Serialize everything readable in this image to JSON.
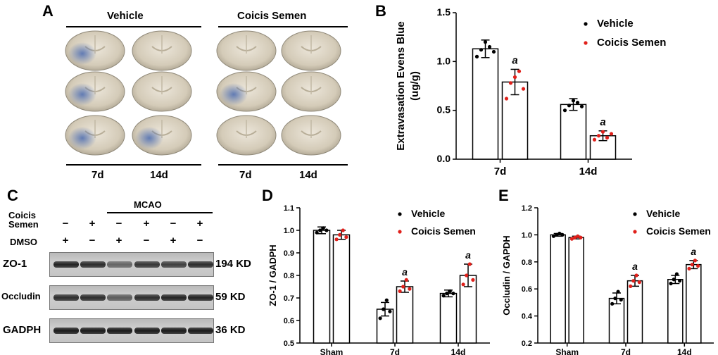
{
  "panel_a": {
    "letter": "A",
    "group_left": "Vehicle",
    "group_right": "Coicis Semen",
    "col_labels": [
      "7d",
      "14d",
      "7d",
      "14d"
    ],
    "colors": {
      "tissue": "#d8d2c4",
      "stain": "#5c6f9c",
      "background": "#ffffff"
    }
  },
  "panel_c": {
    "letter": "C",
    "mcao_label": "MCAO",
    "row_coicis": "Coicis\nSemen",
    "row_coicis_line1": "Coicis",
    "row_coicis_line2": "Semen",
    "row_dmso": "DMSO",
    "coicis_signs": [
      "−",
      "+",
      "−",
      "+",
      "−",
      "+"
    ],
    "dmso_signs": [
      "+",
      "−",
      "+",
      "−",
      "+",
      "−"
    ],
    "blots": [
      {
        "name": "ZO-1",
        "size": "194 KD",
        "intensities": [
          0.9,
          0.85,
          0.55,
          0.8,
          0.75,
          0.85
        ]
      },
      {
        "name": "Occludin",
        "size": "59 KD",
        "intensities": [
          0.85,
          0.85,
          0.6,
          0.85,
          0.9,
          0.9
        ]
      },
      {
        "name": "GADPH",
        "size": "36 KD",
        "intensities": [
          0.95,
          0.95,
          0.95,
          0.95,
          0.95,
          0.95
        ]
      }
    ]
  },
  "chart_data": [
    {
      "panel": "B",
      "type": "bar",
      "ylabel": "Extravasation Evens Blue (ug/g)",
      "ylabel_line1": "Extravasation Evens Blue",
      "ylabel_line2": "(ug/g)",
      "ylim": [
        0,
        1.5
      ],
      "yticks": [
        "0.0",
        "0.5",
        "1.0",
        "1.5"
      ],
      "categories": [
        "7d",
        "14d"
      ],
      "series": [
        {
          "name": "Vehicle",
          "color": "#000000",
          "values": [
            1.13,
            0.56
          ],
          "err": [
            0.09,
            0.06
          ],
          "points": [
            [
              1.05,
              1.12,
              1.2,
              1.15,
              1.1
            ],
            [
              0.5,
              0.55,
              0.6,
              0.58,
              0.54
            ]
          ]
        },
        {
          "name": "Coicis Semen",
          "color": "#e0201b",
          "values": [
            0.79,
            0.24
          ],
          "err": [
            0.13,
            0.05
          ],
          "points": [
            [
              0.62,
              0.78,
              0.84,
              0.9,
              0.72
            ],
            [
              0.2,
              0.24,
              0.28,
              0.22,
              0.26
            ]
          ]
        }
      ],
      "annotations": [
        "a",
        "a"
      ]
    },
    {
      "panel": "D",
      "type": "bar",
      "ylabel": "ZO-1 / GADPH",
      "ylim": [
        0.5,
        1.1
      ],
      "yticks": [
        "0.5",
        "0.6",
        "0.7",
        "0.8",
        "0.9",
        "1.0",
        "1.1"
      ],
      "categories": [
        "Sham",
        "7d",
        "14d"
      ],
      "series": [
        {
          "name": "Vehicle",
          "color": "#000000",
          "values": [
            1.0,
            0.65,
            0.72
          ],
          "err": [
            0.015,
            0.03,
            0.015
          ],
          "points": [
            [
              0.99,
              1.0,
              1.01,
              1.0
            ],
            [
              0.61,
              0.65,
              0.69,
              0.64
            ],
            [
              0.71,
              0.72,
              0.73,
              0.72
            ]
          ]
        },
        {
          "name": "Coicis Semen",
          "color": "#e0201b",
          "values": [
            0.98,
            0.75,
            0.8
          ],
          "err": [
            0.02,
            0.025,
            0.05
          ],
          "points": [
            [
              0.96,
              0.98,
              1.0,
              0.97
            ],
            [
              0.73,
              0.75,
              0.78,
              0.74
            ],
            [
              0.76,
              0.8,
              0.85,
              0.78
            ]
          ]
        }
      ],
      "annotations": [
        "a",
        "a"
      ]
    },
    {
      "panel": "E",
      "type": "bar",
      "ylabel": "Occludin / GAPDH",
      "ylim": [
        0.2,
        1.2
      ],
      "yticks": [
        "0.2",
        "0.4",
        "0.6",
        "0.8",
        "1.0",
        "1.2"
      ],
      "categories": [
        "Sham",
        "7d",
        "14d"
      ],
      "series": [
        {
          "name": "Vehicle",
          "color": "#000000",
          "values": [
            1.0,
            0.53,
            0.67
          ],
          "err": [
            0.01,
            0.04,
            0.03
          ],
          "points": [
            [
              0.99,
              1.0,
              1.01,
              1.0
            ],
            [
              0.49,
              0.53,
              0.58,
              0.52
            ],
            [
              0.64,
              0.67,
              0.71,
              0.66
            ]
          ]
        },
        {
          "name": "Coicis Semen",
          "color": "#e0201b",
          "values": [
            0.98,
            0.66,
            0.78
          ],
          "err": [
            0.01,
            0.04,
            0.03
          ],
          "points": [
            [
              0.97,
              0.98,
              0.99,
              0.98
            ],
            [
              0.62,
              0.66,
              0.7,
              0.65
            ],
            [
              0.75,
              0.78,
              0.81,
              0.77
            ]
          ]
        }
      ],
      "annotations": [
        "a",
        "a"
      ]
    }
  ]
}
